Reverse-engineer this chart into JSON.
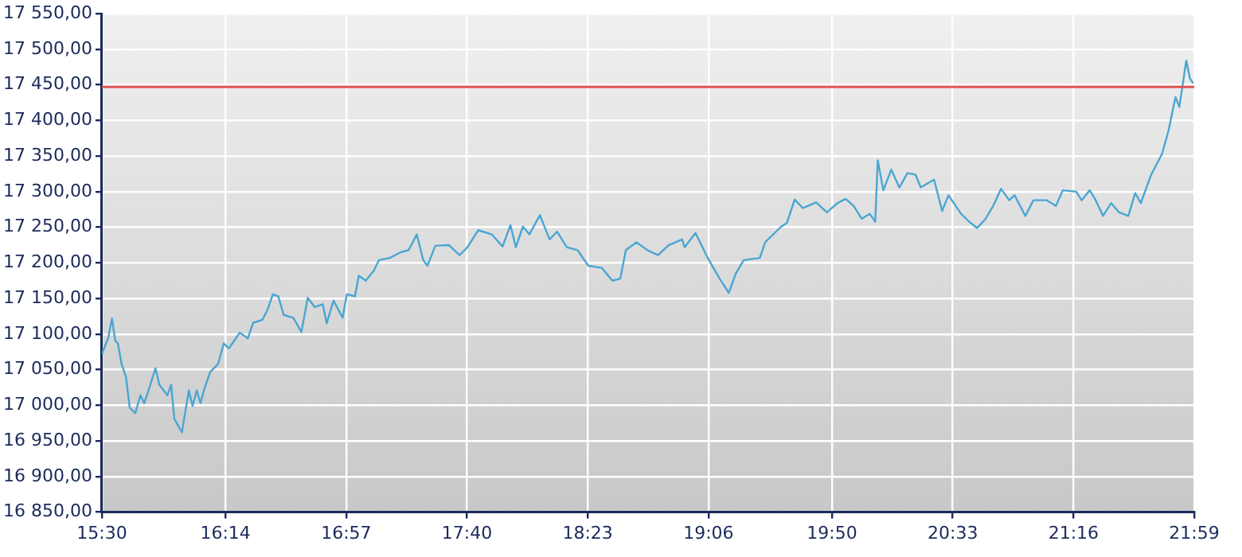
{
  "chart_data": {
    "type": "line",
    "x": [
      15.5,
      15.538,
      15.56,
      15.579,
      15.595,
      15.617,
      15.643,
      15.665,
      15.698,
      15.729,
      15.751,
      15.777,
      15.818,
      15.841,
      15.889,
      15.911,
      15.93,
      15.975,
      16.016,
      16.038,
      16.063,
      16.085,
      16.111,
      16.143,
      16.19,
      16.223,
      16.254,
      16.318,
      16.366,
      16.398,
      16.452,
      16.483,
      16.515,
      16.547,
      16.579,
      16.636,
      16.684,
      16.722,
      16.763,
      16.811,
      16.834,
      16.875,
      16.929,
      16.954,
      17.002,
      17.025,
      17.066,
      17.114,
      17.145,
      17.209,
      17.273,
      17.321,
      17.369,
      17.407,
      17.432,
      17.479,
      17.56,
      17.623,
      17.67,
      17.734,
      17.814,
      17.878,
      17.925,
      17.957,
      17.999,
      18.037,
      18.1,
      18.157,
      18.202,
      18.259,
      18.323,
      18.387,
      18.467,
      18.53,
      18.577,
      18.61,
      18.673,
      18.737,
      18.801,
      18.864,
      18.944,
      18.959,
      19.023,
      19.087,
      19.166,
      19.221,
      19.262,
      19.31,
      19.405,
      19.437,
      19.532,
      19.565,
      19.612,
      19.66,
      19.739,
      19.803,
      19.866,
      19.914,
      19.962,
      20.01,
      20.057,
      20.09,
      20.105,
      20.138,
      20.185,
      20.233,
      20.281,
      20.329,
      20.36,
      20.439,
      20.487,
      20.525,
      20.599,
      20.647,
      20.694,
      20.742,
      20.79,
      20.837,
      20.885,
      20.917,
      20.981,
      21.029,
      21.108,
      21.162,
      21.203,
      21.283,
      21.315,
      21.363,
      21.394,
      21.442,
      21.49,
      21.537,
      21.592,
      21.633,
      21.666,
      21.728,
      21.792,
      21.831,
      21.872,
      21.895,
      21.936,
      21.958,
      21.977
    ],
    "series": [
      {
        "color": "#4aa6d2",
        "values": [
          17072,
          17095,
          17122,
          17091,
          17087,
          17058,
          17040,
          16997,
          16989,
          17014,
          17003,
          17021,
          17052,
          17029,
          17014,
          17029,
          16981,
          16962,
          17021,
          16999,
          17021,
          17003,
          17025,
          17047,
          17058,
          17087,
          17080,
          17102,
          17094,
          17116,
          17120,
          17134,
          17156,
          17153,
          17127,
          17123,
          17103,
          17151,
          17138,
          17142,
          17115,
          17147,
          17123,
          17156,
          17153,
          17182,
          17175,
          17189,
          17204,
          17207,
          17215,
          17218,
          17240,
          17204,
          17196,
          17224,
          17225,
          17211,
          17222,
          17246,
          17240,
          17223,
          17253,
          17222,
          17251,
          17240,
          17267,
          17233,
          17244,
          17222,
          17218,
          17196,
          17193,
          17175,
          17178,
          17218,
          17229,
          17218,
          17211,
          17225,
          17233,
          17222,
          17242,
          17211,
          17178,
          17158,
          17185,
          17204,
          17207,
          17229,
          17251,
          17256,
          17289,
          17277,
          17285,
          17271,
          17284,
          17290,
          17280,
          17262,
          17269,
          17258,
          17344,
          17302,
          17331,
          17306,
          17326,
          17324,
          17306,
          17317,
          17273,
          17295,
          17269,
          17258,
          17249,
          17261,
          17280,
          17304,
          17288,
          17295,
          17266,
          17288,
          17288,
          17280,
          17302,
          17300,
          17288,
          17302,
          17290,
          17266,
          17284,
          17271,
          17266,
          17298,
          17284,
          17324,
          17353,
          17386,
          17433,
          17419,
          17484,
          17459,
          17452
        ]
      }
    ],
    "xlim": [
      15.5,
      21.9833
    ],
    "xticks": [
      {
        "value": 15.5,
        "label": "15:30"
      },
      {
        "value": 16.2333,
        "label": "16:14"
      },
      {
        "value": 16.95,
        "label": "16:57"
      },
      {
        "value": 17.6667,
        "label": "17:40"
      },
      {
        "value": 18.3833,
        "label": "18:23"
      },
      {
        "value": 19.1,
        "label": "19:06"
      },
      {
        "value": 19.8333,
        "label": "19:50"
      },
      {
        "value": 20.55,
        "label": "20:33"
      },
      {
        "value": 21.2667,
        "label": "21:16"
      },
      {
        "value": 21.9833,
        "label": "21:59"
      }
    ],
    "ylim": [
      16850,
      17550
    ],
    "yticks": [
      {
        "value": 16850,
        "label": "16 850,00"
      },
      {
        "value": 16900,
        "label": "16 900,00"
      },
      {
        "value": 16950,
        "label": "16 950,00"
      },
      {
        "value": 17000,
        "label": "17 000,00"
      },
      {
        "value": 17050,
        "label": "17 050,00"
      },
      {
        "value": 17100,
        "label": "17 100,00"
      },
      {
        "value": 17150,
        "label": "17 150,00"
      },
      {
        "value": 17200,
        "label": "17 200,00"
      },
      {
        "value": 17250,
        "label": "17 250,00"
      },
      {
        "value": 17300,
        "label": "17 300,00"
      },
      {
        "value": 17350,
        "label": "17 350,00"
      },
      {
        "value": 17400,
        "label": "17 400,00"
      },
      {
        "value": 17450,
        "label": "17 450,00"
      },
      {
        "value": 17500,
        "label": "17 500,00"
      },
      {
        "value": 17550,
        "label": "17 550,00"
      }
    ],
    "ref_lines": [
      {
        "axis": "y",
        "value": 17447,
        "color": "#e05555"
      }
    ],
    "grid": true,
    "legend": false,
    "marker": "none",
    "line_style": "solid"
  }
}
